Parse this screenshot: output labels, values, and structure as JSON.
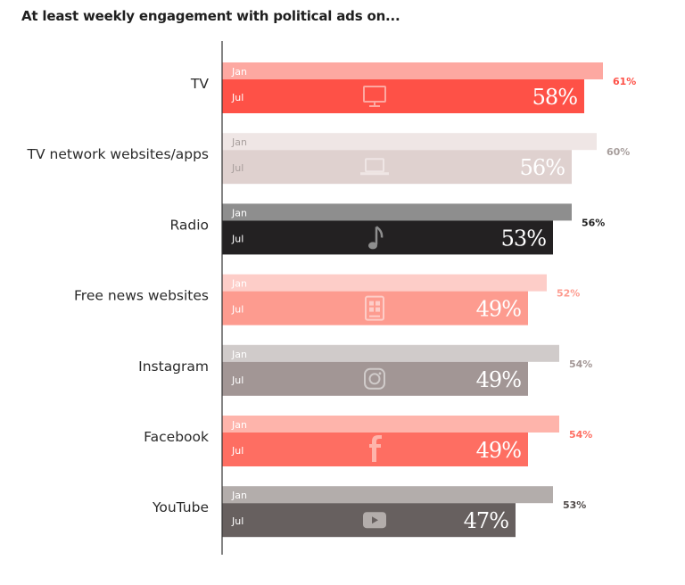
{
  "chart_data": {
    "type": "bar",
    "orientation": "horizontal",
    "title": "At least weekly engagement with political ads on...",
    "xlabel": "",
    "ylabel": "",
    "xlim": [
      0,
      100
    ],
    "grid": false,
    "series_names": [
      "Jan",
      "Jul"
    ],
    "categories": [
      "TV",
      "TV network websites/apps",
      "Radio",
      "Free news websites",
      "Instagram",
      "Facebook",
      "YouTube"
    ],
    "series": [
      {
        "name": "Jan",
        "values": [
          61,
          60,
          56,
          52,
          54,
          54,
          53
        ]
      },
      {
        "name": "Jul",
        "values": [
          58,
          56,
          53,
          49,
          49,
          49,
          47
        ]
      }
    ],
    "value_labels": {
      "Jan": [
        "61%",
        "60%",
        "56%",
        "52%",
        "54%",
        "54%",
        "53%"
      ],
      "Jul": [
        "58%",
        "56%",
        "53%",
        "49%",
        "49%",
        "49%",
        "47%"
      ]
    },
    "rows": [
      {
        "category": "TV",
        "icon": "monitor-icon",
        "jan_color": "#fda8a1",
        "jul_color": "#fe5147",
        "jan_text_color": "#ffffff",
        "jul_text_color": "#ffffff",
        "icon_color": "#fda8a1",
        "jan_value_color": "#fe5147",
        "jul_value_color": "#ffffff"
      },
      {
        "category": "TV network websites/apps",
        "icon": "laptop-icon",
        "jan_color": "#efe6e5",
        "jul_color": "#dfd1cf",
        "jan_text_color": "#a89f9d",
        "jul_text_color": "#a89f9d",
        "icon_color": "#efe6e5",
        "jan_value_color": "#a89f9d",
        "jul_value_color": "#6b6361"
      },
      {
        "category": "Radio",
        "icon": "music-note-icon",
        "jan_color": "#8e8e8e",
        "jul_color": "#232122",
        "jan_text_color": "#ffffff",
        "jul_text_color": "#ffffff",
        "icon_color": "#8e8e8e",
        "jan_value_color": "#1f1f1f",
        "jul_value_color": "#ffffff"
      },
      {
        "category": "Free news websites",
        "icon": "tablet-icon",
        "jan_color": "#fdcdc8",
        "jul_color": "#fd9b8f",
        "jan_text_color": "#ffffff",
        "jul_text_color": "#ffffff",
        "icon_color": "#fdcdc8",
        "jan_value_color": "#fd9b8f",
        "jul_value_color": "#ffffff"
      },
      {
        "category": "Instagram",
        "icon": "instagram-icon",
        "jan_color": "#d0cbca",
        "jul_color": "#a29695",
        "jan_text_color": "#ffffff",
        "jul_text_color": "#ffffff",
        "icon_color": "#d0cbca",
        "jan_value_color": "#a29695",
        "jul_value_color": "#ffffff"
      },
      {
        "category": "Facebook",
        "icon": "facebook-icon",
        "jan_color": "#feb4ab",
        "jul_color": "#fe6e62",
        "jan_text_color": "#ffffff",
        "jul_text_color": "#ffffff",
        "icon_color": "#feb4ab",
        "jan_value_color": "#fe6e62",
        "jul_value_color": "#ffffff"
      },
      {
        "category": "YouTube",
        "icon": "youtube-icon",
        "jan_color": "#b3adab",
        "jul_color": "#67605f",
        "jan_text_color": "#ffffff",
        "jul_text_color": "#ffffff",
        "icon_color": "#b3adab",
        "jan_value_color": "#514b4a",
        "jul_value_color": "#ffffff"
      }
    ]
  }
}
